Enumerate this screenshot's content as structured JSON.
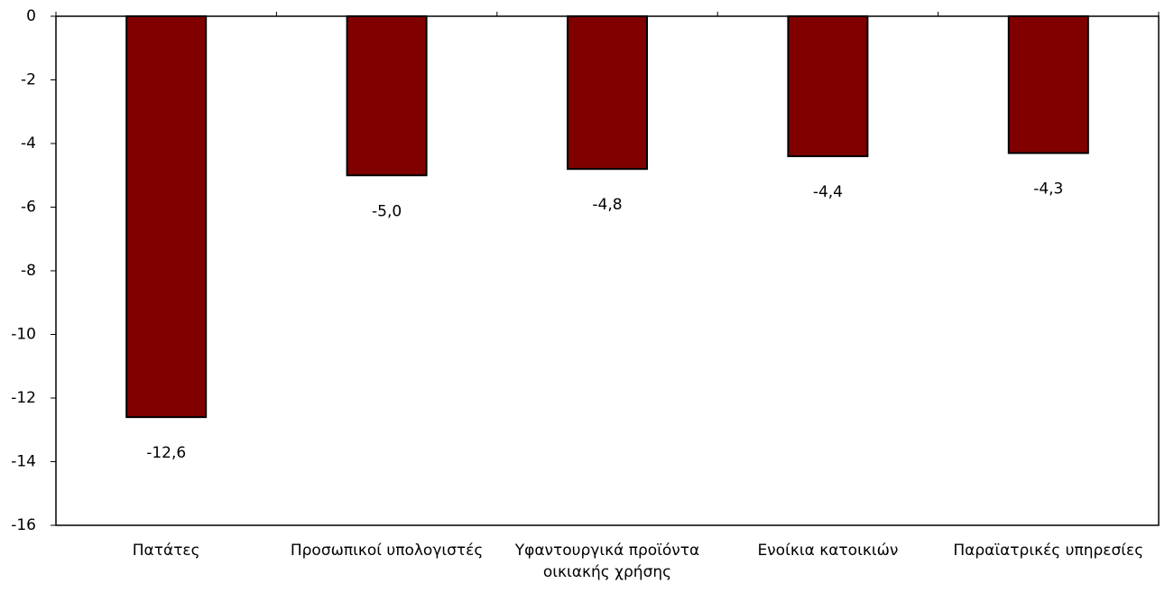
{
  "chart_data": {
    "type": "bar",
    "categories": [
      "Πατάτες",
      "Προσωπικοί υπολογιστές",
      "Υφαντουργικά προϊόντα οικιακής χρήσης",
      "Ενοίκια κατοικιών",
      "Παραϊατρικές υπηρεσίες"
    ],
    "values": [
      -12.6,
      -5.0,
      -4.8,
      -4.4,
      -4.3
    ],
    "value_labels": [
      "-12,6",
      "-5,0",
      "-4,8",
      "-4,4",
      "-4,3"
    ],
    "color": "#800000",
    "ylim": [
      -16,
      0
    ],
    "yticks": [
      0,
      -2,
      -4,
      -6,
      -8,
      -10,
      -12,
      -14,
      -16
    ],
    "grid": false
  }
}
